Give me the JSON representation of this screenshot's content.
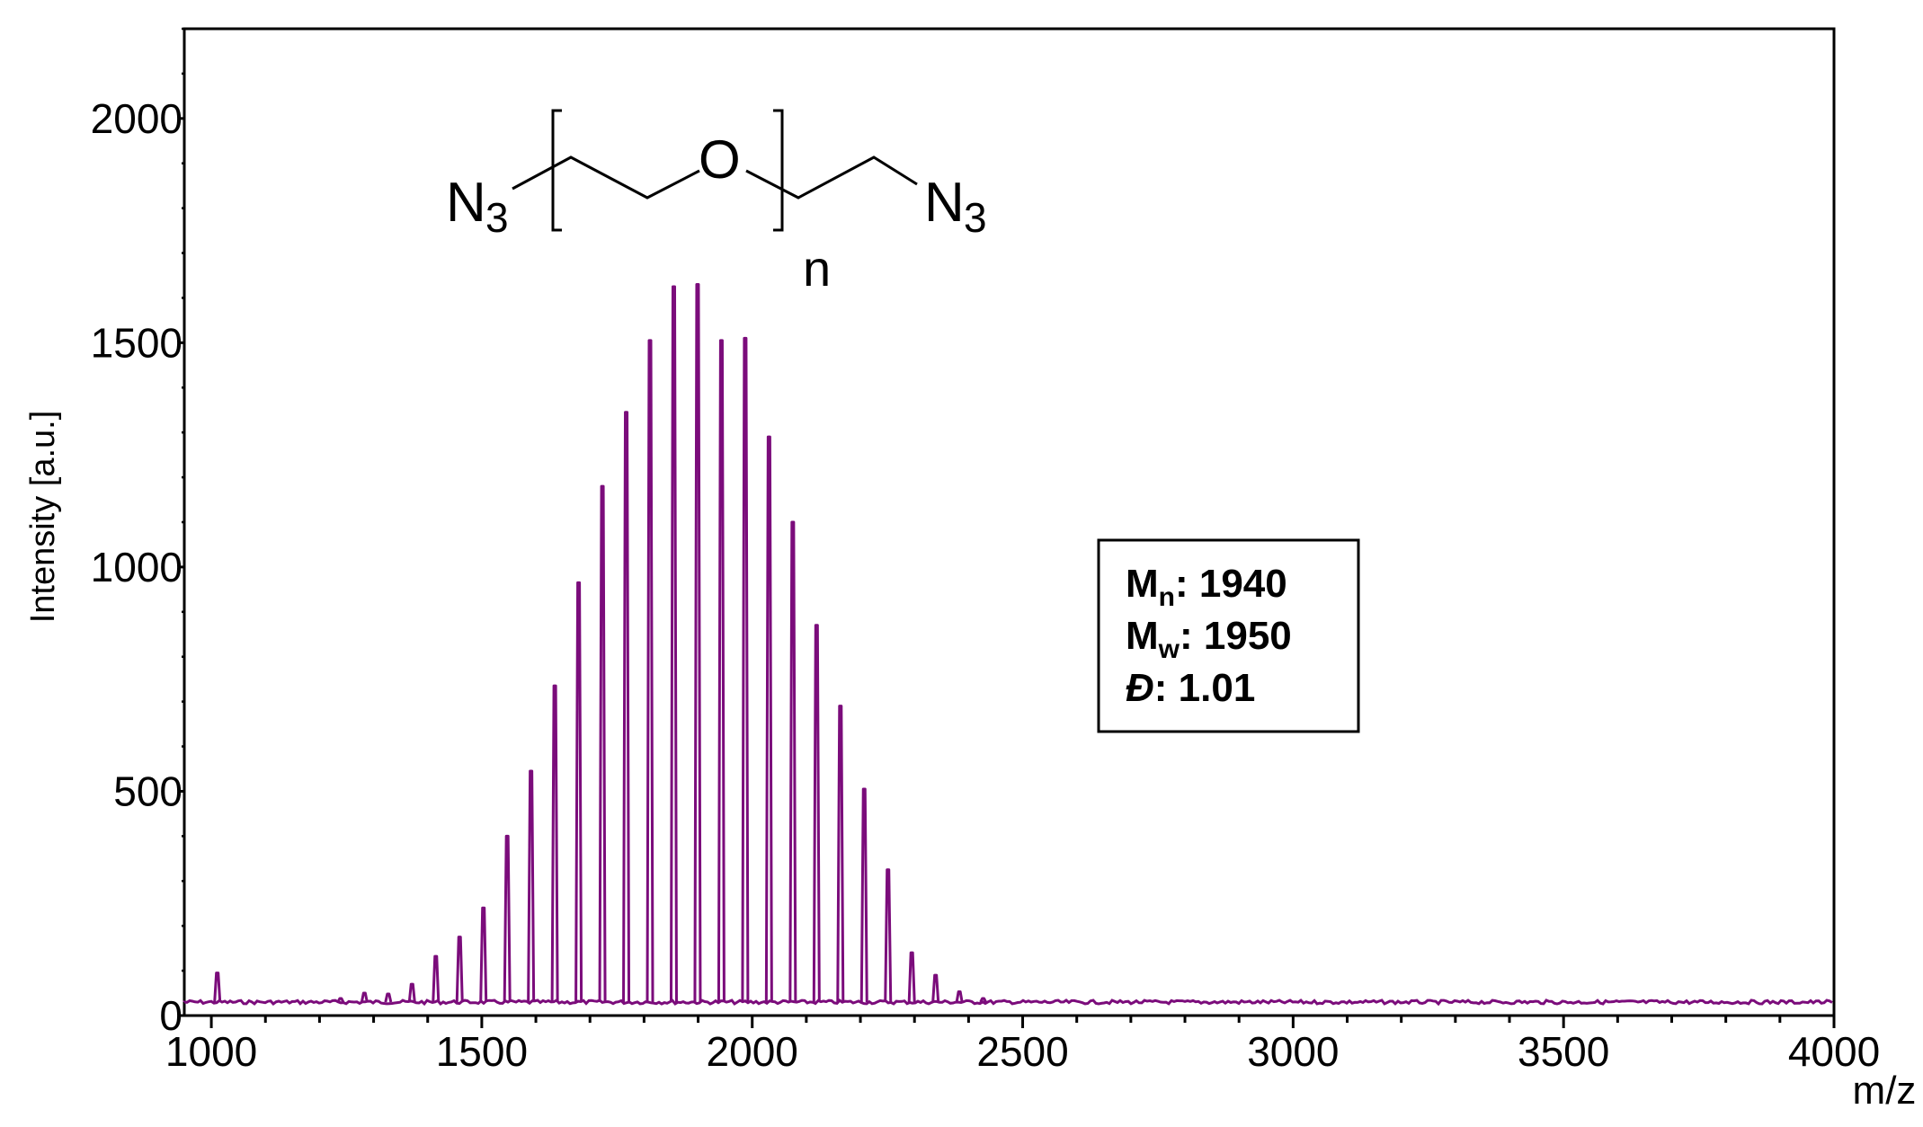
{
  "chart_data": {
    "type": "line",
    "xlabel": "m/z",
    "ylabel": "Intensity [a.u.]",
    "xlim": [
      950,
      4000
    ],
    "ylim": [
      0,
      2200
    ],
    "x_ticks": [
      1000,
      1500,
      2000,
      2500,
      3000,
      3500,
      4000
    ],
    "y_ticks": [
      0,
      500,
      1000,
      1500,
      2000
    ],
    "series": [
      {
        "color": "#7b0c7b",
        "baseline": 30,
        "peaks": [
          {
            "x": 1011,
            "y": 95
          },
          {
            "x": 1239,
            "y": 38
          },
          {
            "x": 1283,
            "y": 50
          },
          {
            "x": 1327,
            "y": 48
          },
          {
            "x": 1371,
            "y": 70
          },
          {
            "x": 1415,
            "y": 132
          },
          {
            "x": 1459,
            "y": 175
          },
          {
            "x": 1503,
            "y": 240
          },
          {
            "x": 1547,
            "y": 400
          },
          {
            "x": 1591,
            "y": 545
          },
          {
            "x": 1635,
            "y": 735
          },
          {
            "x": 1679,
            "y": 965
          },
          {
            "x": 1723,
            "y": 1180
          },
          {
            "x": 1767,
            "y": 1345
          },
          {
            "x": 1811,
            "y": 1505
          },
          {
            "x": 1855,
            "y": 1625
          },
          {
            "x": 1899,
            "y": 1630
          },
          {
            "x": 1943,
            "y": 1505
          },
          {
            "x": 1987,
            "y": 1510
          },
          {
            "x": 2031,
            "y": 1290
          },
          {
            "x": 2075,
            "y": 1100
          },
          {
            "x": 2119,
            "y": 870
          },
          {
            "x": 2163,
            "y": 690
          },
          {
            "x": 2207,
            "y": 505
          },
          {
            "x": 2251,
            "y": 325
          },
          {
            "x": 2295,
            "y": 140
          },
          {
            "x": 2339,
            "y": 90
          },
          {
            "x": 2383,
            "y": 53
          },
          {
            "x": 2427,
            "y": 38
          }
        ]
      }
    ]
  },
  "structure": {
    "end_group_left": "N",
    "end_group_left_sub": "3",
    "oxygen": "O",
    "repeat_label": "n",
    "end_group_right": "N",
    "end_group_right_sub": "3"
  },
  "stats_box": {
    "mn_label": "M",
    "mn_sub": "n",
    "mn_value": ": 1940",
    "mw_label": "M",
    "mw_sub": "w",
    "mw_value": ": 1950",
    "d_label": "Đ",
    "d_value": ": 1.01"
  }
}
